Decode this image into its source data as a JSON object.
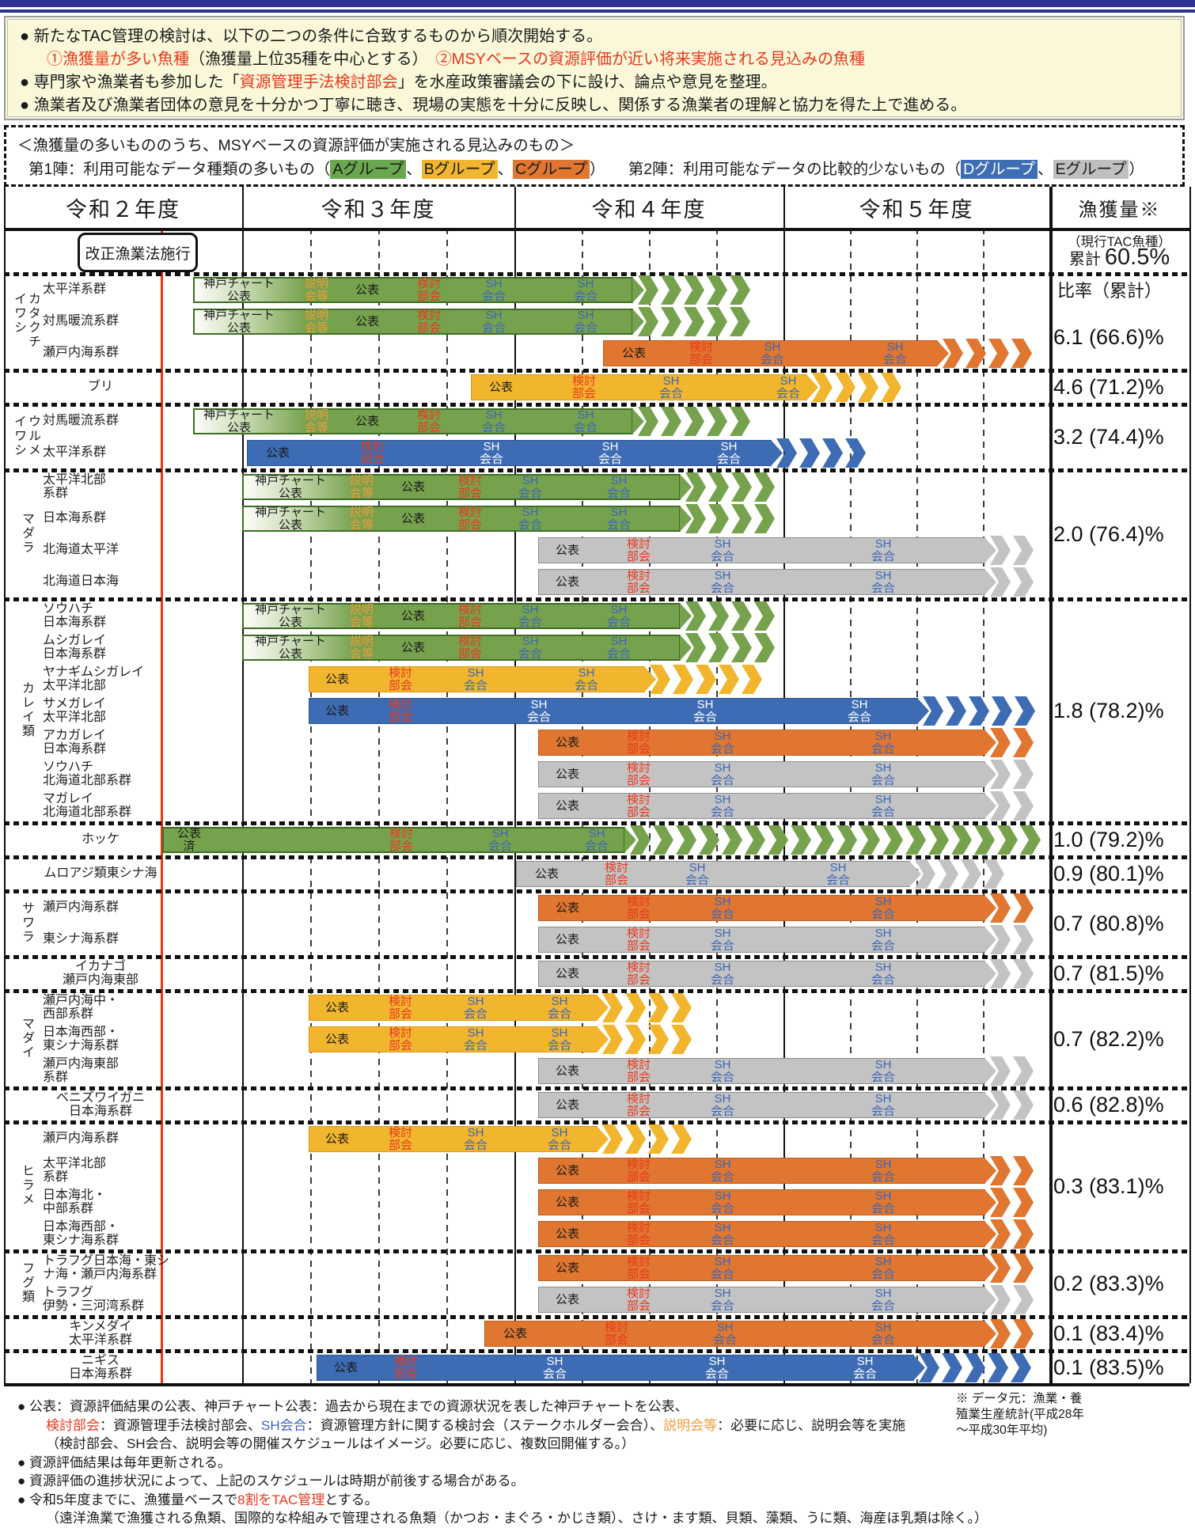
{
  "info_lines": [
    {
      "indent": false,
      "segments": [
        [
          "● 新たなTAC管理の検討は、以下の二つの条件に合致するものから順次開始する。",
          "k"
        ]
      ]
    },
    {
      "indent": true,
      "segments": [
        [
          "①漁獲量が多い魚種",
          "r"
        ],
        [
          "（漁獲量上位35種を中心とする）",
          "k"
        ],
        [
          "　",
          "k"
        ],
        [
          "②MSYベースの資源評価が近い将来実施される見込みの魚種",
          "r"
        ]
      ]
    },
    {
      "indent": false,
      "segments": [
        [
          "● 専門家や漁業者も参加した「",
          "k"
        ],
        [
          "資源管理手法検討部会",
          "r"
        ],
        [
          "」を水産政策審議会の下に設け、論点や意見を整理。",
          "k"
        ]
      ]
    },
    {
      "indent": false,
      "segments": [
        [
          "● 漁業者及び漁業者団体の意見を十分かつ丁寧に聴き、現場の実態を十分に反映し、関係する漁業者の理解と協力を得た上で進める。",
          "k"
        ]
      ]
    }
  ],
  "legend": {
    "line1": "＜漁獲量の多いもののうち、MSYベースの資源評価が実施される見込みのもの＞",
    "line2": [
      [
        "第1陣：利用可能なデータ種類の多いもの（",
        "k"
      ],
      [
        "Aグループ",
        "chipA"
      ],
      [
        "、",
        "k"
      ],
      [
        "Bグループ",
        "chipB"
      ],
      [
        "、",
        "k"
      ],
      [
        "Cグループ",
        "chipC"
      ],
      [
        "）",
        "k"
      ],
      [
        "　　第2陣：利用可能なデータの比較的少ないもの（",
        "k"
      ],
      [
        "Dグループ",
        "chipD"
      ],
      [
        "、",
        "k"
      ],
      [
        "Eグループ",
        "chipE"
      ],
      [
        "）",
        "k"
      ]
    ]
  },
  "table": {
    "columns": [
      "令和２年度",
      "令和３年度",
      "令和４年度",
      "令和５年度",
      "漁獲量※"
    ],
    "milestone": "改正漁業法施行",
    "catch_header": {
      "note": "（現行TAC魚種）",
      "cumulative_label": "累計",
      "cumulative_value": "60.5%",
      "ratio_label": "比率（累計）"
    },
    "bar_presets": {
      "green_wave1": {
        "color": "green",
        "kobe": true,
        "start": 244,
        "solid_end": 800,
        "arrow_end": 990,
        "segments": [
          [
            "神戸チャート\n公表",
            300,
            "k"
          ],
          [
            "説明\n会等",
            398,
            "o"
          ],
          [
            "公表",
            462,
            "k"
          ],
          [
            "検討\n部会",
            540,
            "r"
          ],
          [
            "SH\n会合",
            622,
            "b"
          ],
          [
            "SH\n会合",
            738,
            "b"
          ]
        ]
      },
      "green_wave2": {
        "color": "green",
        "kobe": true,
        "start": 306,
        "solid_end": 860,
        "arrow_end": 995,
        "segments": [
          [
            "神戸チャート\n公表",
            365,
            "k"
          ],
          [
            "説明\n会等",
            455,
            "o"
          ],
          [
            "公表",
            520,
            "k"
          ],
          [
            "検討\n部会",
            592,
            "r"
          ],
          [
            "SH\n会合",
            668,
            "b"
          ],
          [
            "SH\n会合",
            780,
            "b"
          ]
        ]
      },
      "orange_late4": {
        "color": "orange",
        "kobe": false,
        "start": 762,
        "solid_end": 1185,
        "arrow_end": 1340,
        "segments": [
          [
            "公表",
            800,
            "k"
          ],
          [
            "検討\n部会",
            885,
            "r"
          ],
          [
            "SH\n会合",
            975,
            "b"
          ],
          [
            "SH\n会合",
            1130,
            "b"
          ]
        ]
      },
      "yellow_buri": {
        "color": "yellow",
        "kobe": false,
        "start": 595,
        "solid_end": 1020,
        "arrow_end": 1180,
        "segments": [
          [
            "公表",
            632,
            "k"
          ],
          [
            "検討\n部会",
            737,
            "r"
          ],
          [
            "SH\n会合",
            847,
            "b"
          ],
          [
            "SH\n会合",
            995,
            "b"
          ]
        ]
      },
      "blue_urume": {
        "color": "blue",
        "kobe": false,
        "start": 312,
        "solid_end": 975,
        "arrow_end": 1115,
        "segments": [
          [
            "公表",
            350,
            "k"
          ],
          [
            "検討\n部会",
            470,
            "r"
          ],
          [
            "SH\n会合",
            620,
            "w"
          ],
          [
            "SH\n会合",
            770,
            "w"
          ],
          [
            "SH\n会合",
            920,
            "w"
          ]
        ]
      },
      "gray_std": {
        "color": "gray",
        "kobe": false,
        "start": 680,
        "solid_end": 1245,
        "arrow_end": 1335,
        "segments": [
          [
            "公表",
            716,
            "k"
          ],
          [
            "検討\n部会",
            806,
            "r"
          ],
          [
            "SH\n会合",
            912,
            "b"
          ],
          [
            "SH\n会合",
            1115,
            "b"
          ]
        ]
      },
      "orange_std": {
        "color": "orange",
        "kobe": false,
        "start": 680,
        "solid_end": 1245,
        "arrow_end": 1345,
        "segments": [
          [
            "公表",
            716,
            "k"
          ],
          [
            "検討\n部会",
            806,
            "r"
          ],
          [
            "SH\n会合",
            912,
            "b"
          ],
          [
            "SH\n会合",
            1115,
            "b"
          ]
        ]
      },
      "yellow_karei": {
        "color": "yellow",
        "kobe": false,
        "start": 390,
        "solid_end": 815,
        "arrow_end": 985,
        "segments": [
          [
            "公表",
            425,
            "k"
          ],
          [
            "検討\n部会",
            505,
            "r"
          ],
          [
            "SH\n会合",
            600,
            "b"
          ],
          [
            "SH\n会合",
            740,
            "b"
          ]
        ]
      },
      "blue_same": {
        "color": "blue",
        "kobe": false,
        "start": 390,
        "solid_end": 1160,
        "arrow_end": 1335,
        "segments": [
          [
            "公表",
            425,
            "k"
          ],
          [
            "検討\n部会",
            505,
            "r"
          ],
          [
            "SH\n会合",
            680,
            "w"
          ],
          [
            "SH\n会合",
            890,
            "w"
          ],
          [
            "SH\n会合",
            1085,
            "w"
          ]
        ]
      },
      "green_hokke": {
        "color": "green",
        "kobe": false,
        "start": 205,
        "solid_end": 790,
        "arrow_end": 1345,
        "segments": [
          [
            "公表\n済",
            237,
            "k"
          ],
          [
            "検討\n部会",
            505,
            "r"
          ],
          [
            "SH\n会合",
            630,
            "b"
          ],
          [
            "SH\n会合",
            752,
            "b"
          ]
        ]
      },
      "gray_muroaji": {
        "color": "gray",
        "kobe": false,
        "start": 652,
        "solid_end": 1150,
        "arrow_end": 1290,
        "segments": [
          [
            "公表",
            690,
            "k"
          ],
          [
            "検討\n部会",
            778,
            "r"
          ],
          [
            "SH\n会合",
            880,
            "b"
          ],
          [
            "SH\n会合",
            1058,
            "b"
          ]
        ]
      },
      "yellow_madai": {
        "color": "yellow",
        "kobe": false,
        "start": 390,
        "solid_end": 755,
        "arrow_end": 895,
        "segments": [
          [
            "公表",
            425,
            "k"
          ],
          [
            "検討\n部会",
            505,
            "r"
          ],
          [
            "SH\n会合",
            600,
            "b"
          ],
          [
            "SH\n会合",
            706,
            "b"
          ]
        ]
      },
      "orange_kinme": {
        "color": "orange",
        "kobe": false,
        "start": 612,
        "solid_end": 1245,
        "arrow_end": 1345,
        "segments": [
          [
            "公表",
            650,
            "k"
          ],
          [
            "検討\n部会",
            778,
            "r"
          ],
          [
            "SH\n会合",
            915,
            "b"
          ],
          [
            "SH\n会合",
            1115,
            "b"
          ]
        ]
      },
      "blue_nigisu": {
        "color": "blue",
        "kobe": false,
        "start": 400,
        "solid_end": 1155,
        "arrow_end": 1335,
        "segments": [
          [
            "公表",
            436,
            "k"
          ],
          [
            "検討\n部会",
            512,
            "r"
          ],
          [
            "SH\n会合",
            700,
            "w"
          ],
          [
            "SH\n会合",
            905,
            "w"
          ],
          [
            "SH\n会合",
            1092,
            "w"
          ]
        ]
      }
    },
    "bands": [
      {
        "group": "カタクチイワシ",
        "wrap_h": 74,
        "pct": "6.1 (66.6)%",
        "has_ratio_label": true,
        "rows": [
          {
            "stock": "太平洋系群",
            "bar": "green_wave1"
          },
          {
            "stock": "対馬暖流系群",
            "bar": "green_wave1"
          },
          {
            "stock": "瀬戸内海系群",
            "bar": "orange_late4"
          }
        ]
      },
      {
        "group": null,
        "pct": "4.6 (71.2)%",
        "rows": [
          {
            "stock": "ブリ",
            "bar": "yellow_buri"
          }
        ]
      },
      {
        "group": "ウルメイワシ",
        "wrap_h": 57,
        "pct": "3.2 (74.4)%",
        "rows": [
          {
            "stock": "対馬暖流系群",
            "bar": "green_wave1"
          },
          {
            "stock": "太平洋系群",
            "bar": "blue_urume"
          }
        ]
      },
      {
        "group": "マダラ",
        "pct": "2.0 (76.4)%",
        "rows": [
          {
            "stock": "太平洋北部\n系群",
            "bar": "green_wave2"
          },
          {
            "stock": "日本海系群",
            "bar": "green_wave2"
          },
          {
            "stock": "北海道太平洋",
            "bar": "gray_std"
          },
          {
            "stock": "北海道日本海",
            "bar": "gray_std"
          }
        ]
      },
      {
        "group": "カレイ類",
        "pct": "1.8 (78.2)%",
        "rows": [
          {
            "stock": "ソウハチ\n日本海系群",
            "bar": "green_wave2"
          },
          {
            "stock": "ムシガレイ\n日本海系群",
            "bar": "green_wave2"
          },
          {
            "stock": "ヤナギムシガレイ\n太平洋北部",
            "bar": "yellow_karei"
          },
          {
            "stock": "サメガレイ\n太平洋北部",
            "bar": "blue_same"
          },
          {
            "stock": "アカガレイ\n日本海系群",
            "bar": "orange_std"
          },
          {
            "stock": "ソウハチ\n北海道北部系群",
            "bar": "gray_std"
          },
          {
            "stock": "マガレイ\n北海道北部系群",
            "bar": "gray_std"
          }
        ]
      },
      {
        "group": null,
        "pct": "1.0 (79.2)%",
        "rows": [
          {
            "stock": "ホッケ",
            "bar": "green_hokke"
          }
        ]
      },
      {
        "group": null,
        "pct": "0.9 (80.1)%",
        "rows": [
          {
            "stock": "ムロアジ類東シナ海",
            "bar": "gray_muroaji"
          }
        ]
      },
      {
        "group": "サワラ",
        "pct": "0.7 (80.8)%",
        "rows": [
          {
            "stock": "瀬戸内海系群",
            "bar": "orange_std"
          },
          {
            "stock": "東シナ海系群",
            "bar": "gray_std"
          }
        ]
      },
      {
        "group": null,
        "pct": "0.7 (81.5)%",
        "rows": [
          {
            "stock": "イカナゴ\n瀬戸内海東部",
            "bar": "gray_std"
          }
        ]
      },
      {
        "group": "マダイ",
        "pct": "0.7 (82.2)%",
        "rows": [
          {
            "stock": "瀬戸内海中・\n西部系群",
            "bar": "yellow_madai"
          },
          {
            "stock": "日本海西部・\n東シナ海系群",
            "bar": "yellow_madai"
          },
          {
            "stock": "瀬戸内海東部\n系群",
            "bar": "gray_std"
          }
        ]
      },
      {
        "group": null,
        "pct": "0.6 (82.8)%",
        "rows": [
          {
            "stock": "ベニズワイガニ\n日本海系群",
            "bar": "gray_std"
          }
        ]
      },
      {
        "group": "ヒラメ",
        "pct": "0.3 (83.1)%",
        "rows": [
          {
            "stock": "瀬戸内海系群",
            "bar": "yellow_madai"
          },
          {
            "stock": "太平洋北部\n系群",
            "bar": "orange_std"
          },
          {
            "stock": "日本海北・\n中部系群",
            "bar": "orange_std"
          },
          {
            "stock": "日本海西部・\n東シナ海系群",
            "bar": "orange_std"
          }
        ]
      },
      {
        "group": "フグ類",
        "pct": "0.2 (83.3)%",
        "rows": [
          {
            "stock": "トラフグ日本海・東シ\nナ海・瀬戸内海系群",
            "bar": "orange_std"
          },
          {
            "stock": "トラフグ\n伊勢・三河湾系群",
            "bar": "gray_std"
          }
        ]
      },
      {
        "group": null,
        "pct": "0.1 (83.4)%",
        "rows": [
          {
            "stock": "キンメダイ\n太平洋系群",
            "bar": "orange_kinme"
          }
        ]
      },
      {
        "group": null,
        "pct": "0.1 (83.5)%",
        "rows": [
          {
            "stock": "ニギス\n日本海系群",
            "bar": "blue_nigisu"
          }
        ]
      }
    ]
  },
  "footnotes": [
    {
      "indent": false,
      "segments": [
        [
          "● 公表：資源評価結果の公表、神戸チャート公表：過去から現在までの資源状況を表した神戸チャートを公表、",
          "k"
        ]
      ]
    },
    {
      "indent": true,
      "segments": [
        [
          "検討部会",
          "r"
        ],
        [
          "：資源管理手法検討部会、",
          "k"
        ],
        [
          "SH会合",
          "b"
        ],
        [
          "：資源管理方針に関する検討会（ステークホルダー会合）、",
          "k"
        ],
        [
          "説明会等",
          "o"
        ],
        [
          "：必要に応じ、説明会等を実施",
          "k"
        ]
      ]
    },
    {
      "indent": true,
      "segments": [
        [
          "（検討部会、SH会合、説明会等の開催スケジュールはイメージ。必要に応じ、複数回開催する。）",
          "k"
        ]
      ]
    },
    {
      "indent": false,
      "segments": [
        [
          "● 資源評価結果は毎年更新される。",
          "k"
        ]
      ]
    },
    {
      "indent": false,
      "segments": [
        [
          "● 資源評価の進捗状況によって、上記のスケジュールは時期が前後する場合がある。",
          "k"
        ]
      ]
    },
    {
      "indent": false,
      "segments": [
        [
          "● 令和5年度までに、漁獲量ベースで",
          "k"
        ],
        [
          "8割をTAC管理",
          "r"
        ],
        [
          "とする。",
          "k"
        ]
      ]
    },
    {
      "indent": true,
      "segments": [
        [
          "（遠洋漁業で漁獲される魚類、国際的な枠組みで管理される魚類（かつお・まぐろ・かじき類）、さけ・ます類、貝類、藻類、うに類、海産ほ乳類は除く。）",
          "k"
        ]
      ]
    }
  ],
  "source_note": "※ データ元：漁業・養\n殖業生産統計(平成28年\n〜平成30年平均)",
  "colors": {
    "group_a_green": "#6AA84F",
    "group_b_yellow": "#F1B52F",
    "group_c_orange": "#E0762F",
    "group_d_blue": "#3D6EB5",
    "group_e_gray": "#BFBFBF",
    "accent_red": "#E8391D",
    "seg_orange": "#F09C3C",
    "seg_blue": "#3B66B8",
    "topbar_navy": "#2E3192",
    "info_bg_cream": "#FAF8D9",
    "law_line_red": "#F03410"
  }
}
